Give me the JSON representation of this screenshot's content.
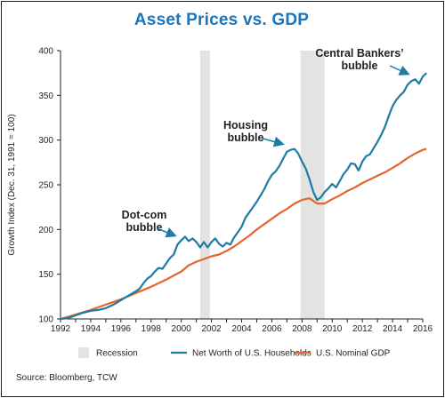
{
  "chart_data": {
    "type": "line",
    "title": "Asset Prices vs. GDP",
    "xlabel": "",
    "ylabel": "Growth Index (Dec. 31, 1991 = 100)",
    "xlim": [
      1992,
      2016
    ],
    "ylim": [
      100,
      400
    ],
    "x_ticks": [
      "1992",
      "1994",
      "1996",
      "1998",
      "2000",
      "2002",
      "2004",
      "2006",
      "2008",
      "2010",
      "2012",
      "2014",
      "2016"
    ],
    "y_ticks": [
      "100",
      "150",
      "200",
      "250",
      "300",
      "350",
      "400"
    ],
    "grid": false,
    "legend_position": "bottom",
    "recessions": [
      [
        2001.25,
        2001.9
      ],
      [
        2007.9,
        2009.5
      ]
    ],
    "recession_label": "Recession",
    "recession_color": "#e3e3e3",
    "series": [
      {
        "name": "Net Worth of U.S. Households",
        "color": "#1e7ba7",
        "points": [
          [
            1992,
            100
          ],
          [
            1992.5,
            101
          ],
          [
            1993,
            104
          ],
          [
            1993.5,
            107
          ],
          [
            1994,
            109
          ],
          [
            1994.5,
            110
          ],
          [
            1995,
            112
          ],
          [
            1995.5,
            116
          ],
          [
            1996,
            121
          ],
          [
            1996.5,
            126
          ],
          [
            1997,
            131
          ],
          [
            1997.25,
            134
          ],
          [
            1997.5,
            140
          ],
          [
            1997.75,
            145
          ],
          [
            1998,
            148
          ],
          [
            1998.25,
            153
          ],
          [
            1998.5,
            157
          ],
          [
            1998.75,
            156
          ],
          [
            1999,
            162
          ],
          [
            1999.25,
            168
          ],
          [
            1999.5,
            172
          ],
          [
            1999.75,
            183
          ],
          [
            2000,
            188
          ],
          [
            2000.25,
            192
          ],
          [
            2000.5,
            187
          ],
          [
            2000.75,
            190
          ],
          [
            2001,
            186
          ],
          [
            2001.25,
            180
          ],
          [
            2001.5,
            186
          ],
          [
            2001.75,
            180
          ],
          [
            2002,
            186
          ],
          [
            2002.25,
            190
          ],
          [
            2002.5,
            184
          ],
          [
            2002.75,
            181
          ],
          [
            2003,
            185
          ],
          [
            2003.25,
            183
          ],
          [
            2003.5,
            191
          ],
          [
            2003.75,
            197
          ],
          [
            2004,
            203
          ],
          [
            2004.25,
            213
          ],
          [
            2004.5,
            219
          ],
          [
            2004.75,
            225
          ],
          [
            2005,
            231
          ],
          [
            2005.25,
            238
          ],
          [
            2005.5,
            245
          ],
          [
            2005.75,
            254
          ],
          [
            2006,
            261
          ],
          [
            2006.25,
            265
          ],
          [
            2006.5,
            271
          ],
          [
            2006.75,
            279
          ],
          [
            2007,
            287
          ],
          [
            2007.25,
            289
          ],
          [
            2007.5,
            290
          ],
          [
            2007.75,
            285
          ],
          [
            2008,
            276
          ],
          [
            2008.25,
            268
          ],
          [
            2008.5,
            256
          ],
          [
            2008.75,
            242
          ],
          [
            2009,
            233
          ],
          [
            2009.25,
            236
          ],
          [
            2009.5,
            242
          ],
          [
            2009.75,
            246
          ],
          [
            2010,
            251
          ],
          [
            2010.25,
            247
          ],
          [
            2010.5,
            254
          ],
          [
            2010.75,
            262
          ],
          [
            2011,
            267
          ],
          [
            2011.25,
            274
          ],
          [
            2011.5,
            273
          ],
          [
            2011.75,
            266
          ],
          [
            2012,
            276
          ],
          [
            2012.25,
            282
          ],
          [
            2012.5,
            284
          ],
          [
            2012.75,
            291
          ],
          [
            2013,
            298
          ],
          [
            2013.25,
            306
          ],
          [
            2013.5,
            315
          ],
          [
            2013.75,
            327
          ],
          [
            2014,
            338
          ],
          [
            2014.25,
            345
          ],
          [
            2014.5,
            350
          ],
          [
            2014.75,
            354
          ],
          [
            2015,
            362
          ],
          [
            2015.25,
            366
          ],
          [
            2015.5,
            368
          ],
          [
            2015.75,
            363
          ],
          [
            2016,
            371
          ],
          [
            2016.25,
            375
          ]
        ]
      },
      {
        "name": "U.S. Nominal GDP",
        "color": "#e2662d",
        "points": [
          [
            1992,
            100
          ],
          [
            1993,
            105
          ],
          [
            1994,
            110
          ],
          [
            1995,
            116
          ],
          [
            1996,
            122
          ],
          [
            1997,
            129
          ],
          [
            1998,
            136
          ],
          [
            1999,
            144
          ],
          [
            2000,
            153
          ],
          [
            2000.5,
            160
          ],
          [
            2001,
            164
          ],
          [
            2001.5,
            167
          ],
          [
            2002,
            170
          ],
          [
            2002.5,
            172
          ],
          [
            2003,
            176
          ],
          [
            2003.5,
            181
          ],
          [
            2004,
            187
          ],
          [
            2004.5,
            193
          ],
          [
            2005,
            200
          ],
          [
            2005.5,
            206
          ],
          [
            2006,
            212
          ],
          [
            2006.5,
            218
          ],
          [
            2007,
            223
          ],
          [
            2007.5,
            229
          ],
          [
            2008,
            233
          ],
          [
            2008.5,
            235
          ],
          [
            2009,
            229
          ],
          [
            2009.5,
            229
          ],
          [
            2010,
            234
          ],
          [
            2010.5,
            238
          ],
          [
            2011,
            243
          ],
          [
            2011.5,
            247
          ],
          [
            2012,
            252
          ],
          [
            2012.5,
            256
          ],
          [
            2013,
            260
          ],
          [
            2013.5,
            264
          ],
          [
            2014,
            269
          ],
          [
            2014.5,
            274
          ],
          [
            2015,
            280
          ],
          [
            2015.5,
            285
          ],
          [
            2016,
            289
          ],
          [
            2016.25,
            290
          ]
        ]
      }
    ],
    "annotations": [
      {
        "lines": [
          "Dot-com",
          "bubble"
        ],
        "anchor": [
          2000,
          190
        ]
      },
      {
        "lines": [
          "Housing",
          "bubble"
        ],
        "anchor": [
          2007,
          290
        ]
      },
      {
        "lines": [
          "Central Bankers’",
          "bubble"
        ],
        "anchor": [
          2015,
          368
        ]
      }
    ]
  },
  "source": "Source: Bloomberg, TCW"
}
